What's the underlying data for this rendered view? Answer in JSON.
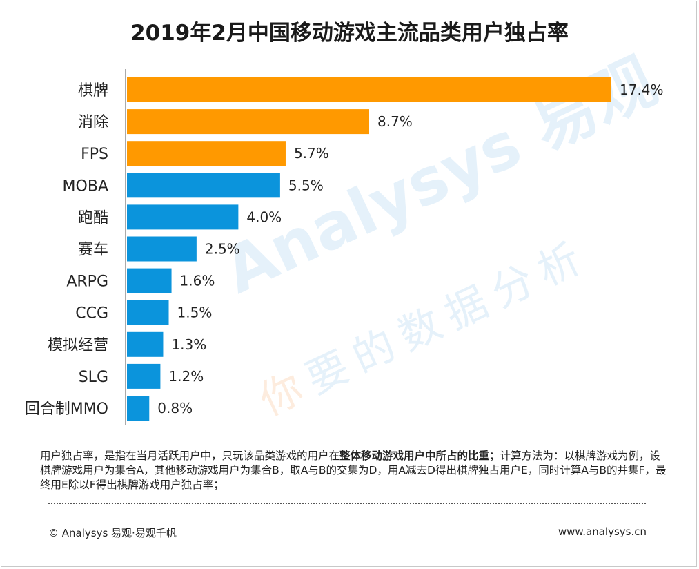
{
  "title": "2019年2月中国移动游戏主流品类用户独占率",
  "watermark": {
    "brand_en": "Analysys",
    "brand_cn": "易观",
    "slogan_first": "你",
    "slogan_rest": "要的数据分析"
  },
  "colors": {
    "orange": "#FF9900",
    "blue": "#0B94DC",
    "text": "#222222"
  },
  "chart_data": {
    "type": "bar",
    "orientation": "horizontal",
    "title": "2019年2月中国移动游戏主流品类用户独占率",
    "categories": [
      "棋牌",
      "消除",
      "FPS",
      "MOBA",
      "跑酷",
      "赛车",
      "ARPG",
      "CCG",
      "模拟经营",
      "SLG",
      "回合制MMO"
    ],
    "values": [
      17.4,
      8.7,
      5.7,
      5.5,
      4.0,
      2.5,
      1.6,
      1.5,
      1.3,
      1.2,
      0.8
    ],
    "labels": [
      "17.4%",
      "8.7%",
      "5.7%",
      "5.5%",
      "4.0%",
      "2.5%",
      "1.6%",
      "1.5%",
      "1.3%",
      "1.2%",
      "0.8%"
    ],
    "highlight": [
      true,
      true,
      true,
      false,
      false,
      false,
      false,
      false,
      false,
      false,
      false
    ],
    "xlim": [
      0,
      17.4
    ],
    "unit": "%",
    "grid": false,
    "legend": "none"
  },
  "note": {
    "prefix": "用户独占率，是指在当月活跃用户中，只玩该品类游戏的用户在",
    "bold": "整体移动游戏用户中所占的比重",
    "suffix": "；计算方法为：以棋牌游戏为例，设棋牌游戏用户为集合A，其他移动游戏用户为集合B，取A与B的交集为D，用A减去D得出棋牌独占用户E，同时计算A与B的并集F，最终用E除以F得出棋牌游戏用户独占率；"
  },
  "footer": {
    "copyright": "© Analysys 易观·易观千帆",
    "website": "www.analysys.cn"
  }
}
